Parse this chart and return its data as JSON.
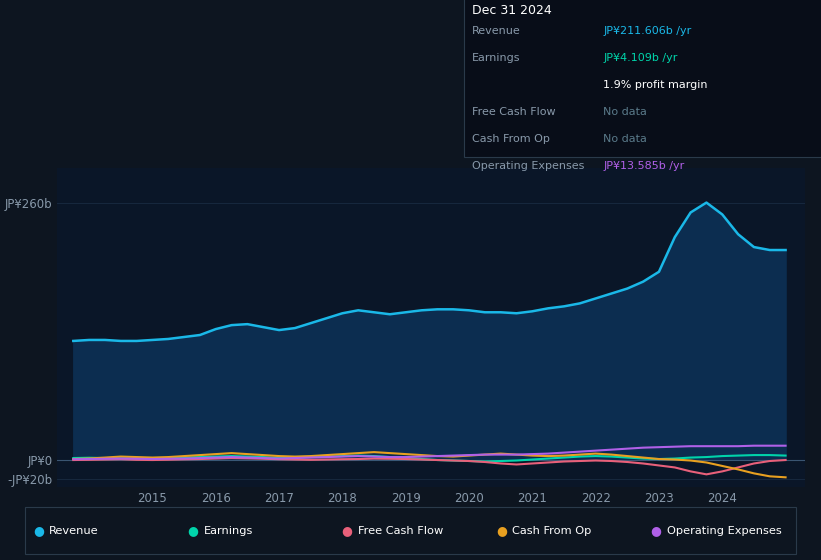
{
  "bg_color": "#0d1520",
  "plot_bg_color": "#0a1628",
  "grid_color": "#1a2d45",
  "years": [
    2013.75,
    2014.0,
    2014.25,
    2014.5,
    2014.75,
    2015.0,
    2015.25,
    2015.5,
    2015.75,
    2016.0,
    2016.25,
    2016.5,
    2016.75,
    2017.0,
    2017.25,
    2017.5,
    2017.75,
    2018.0,
    2018.25,
    2018.5,
    2018.75,
    2019.0,
    2019.25,
    2019.5,
    2019.75,
    2020.0,
    2020.25,
    2020.5,
    2020.75,
    2021.0,
    2021.25,
    2021.5,
    2021.75,
    2022.0,
    2022.25,
    2022.5,
    2022.75,
    2023.0,
    2023.25,
    2023.5,
    2023.75,
    2024.0,
    2024.25,
    2024.5,
    2024.75,
    2025.0
  ],
  "revenue": [
    120,
    121,
    121,
    120,
    120,
    121,
    122,
    124,
    126,
    132,
    136,
    137,
    134,
    131,
    133,
    138,
    143,
    148,
    151,
    149,
    147,
    149,
    151,
    152,
    152,
    151,
    149,
    149,
    148,
    150,
    153,
    155,
    158,
    163,
    168,
    173,
    180,
    190,
    225,
    250,
    260,
    248,
    228,
    215,
    212,
    212
  ],
  "earnings": [
    1.5,
    1.8,
    1.5,
    1.2,
    0.8,
    1.0,
    1.5,
    2.0,
    2.5,
    3.0,
    3.5,
    3.0,
    2.5,
    1.5,
    2.0,
    2.5,
    3.0,
    3.5,
    4.0,
    3.5,
    2.5,
    1.5,
    0.5,
    -0.5,
    -1.0,
    -1.5,
    -2.0,
    -1.5,
    -1.0,
    0.0,
    1.0,
    2.0,
    3.0,
    3.5,
    3.0,
    2.0,
    1.0,
    0.5,
    1.0,
    2.0,
    2.5,
    3.5,
    4.0,
    4.5,
    4.5,
    4.0
  ],
  "free_cash_flow": [
    -0.5,
    -0.3,
    0.0,
    0.3,
    -0.3,
    -0.5,
    -0.2,
    0.2,
    0.5,
    1.0,
    1.5,
    1.2,
    0.8,
    0.3,
    0.0,
    -0.3,
    0.0,
    0.3,
    0.5,
    1.0,
    0.8,
    0.5,
    0.0,
    -0.5,
    -1.0,
    -1.5,
    -2.5,
    -4.0,
    -5.0,
    -4.0,
    -3.0,
    -2.0,
    -1.5,
    -1.0,
    -1.5,
    -2.5,
    -4.0,
    -6.0,
    -8.0,
    -12.0,
    -15.0,
    -12.0,
    -8.0,
    -4.0,
    -1.5,
    -0.5
  ],
  "cash_from_op": [
    0.5,
    1.0,
    2.0,
    3.0,
    2.5,
    2.0,
    2.5,
    3.5,
    4.5,
    5.5,
    6.5,
    5.5,
    4.5,
    3.5,
    3.0,
    3.5,
    4.5,
    5.5,
    6.5,
    7.5,
    6.5,
    5.5,
    4.5,
    3.5,
    3.0,
    4.0,
    5.0,
    6.0,
    5.0,
    4.0,
    3.5,
    4.0,
    5.0,
    6.0,
    5.0,
    3.5,
    2.0,
    0.5,
    0.0,
    -1.0,
    -3.0,
    -6.5,
    -10.0,
    -14.0,
    -17.0,
    -18.0
  ],
  "operating_expenses": [
    0.3,
    0.5,
    0.8,
    1.0,
    0.8,
    0.5,
    0.8,
    1.0,
    1.5,
    2.0,
    2.5,
    2.0,
    1.5,
    1.0,
    1.5,
    2.0,
    2.5,
    3.0,
    3.5,
    3.0,
    2.5,
    2.5,
    3.0,
    3.5,
    4.0,
    4.5,
    5.0,
    5.0,
    5.0,
    5.5,
    6.0,
    7.0,
    8.0,
    9.0,
    10.0,
    11.0,
    12.0,
    12.5,
    13.0,
    13.5,
    13.5,
    13.5,
    13.5,
    14.0,
    14.0,
    14.0
  ],
  "ylim": [
    -28,
    295
  ],
  "yticks": [
    -20,
    0,
    260
  ],
  "ytick_labels": [
    "-JP¥20b",
    "JP¥0",
    "JP¥260b"
  ],
  "xlim": [
    2013.5,
    2025.3
  ],
  "xticks": [
    2015,
    2016,
    2017,
    2018,
    2019,
    2020,
    2021,
    2022,
    2023,
    2024
  ],
  "revenue_color": "#1ab8e8",
  "revenue_fill_color": "#0c2d50",
  "earnings_color": "#00d4aa",
  "free_cash_flow_color": "#e8607a",
  "cash_from_op_color": "#e8a020",
  "operating_expenses_color": "#b060e8",
  "zero_line_color": "#4a6a8a",
  "info_box": {
    "title": "Dec 31 2024",
    "revenue_label": "Revenue",
    "revenue_value": "JP¥211.606b /yr",
    "earnings_label": "Earnings",
    "earnings_value": "JP¥4.109b /yr",
    "profit_margin": "1.9% profit margin",
    "fcf_label": "Free Cash Flow",
    "fcf_value": "No data",
    "cashop_label": "Cash From Op",
    "cashop_value": "No data",
    "opex_label": "Operating Expenses",
    "opex_value": "JP¥13.585b /yr"
  },
  "legend_items": [
    {
      "label": "Revenue",
      "color": "#1ab8e8"
    },
    {
      "label": "Earnings",
      "color": "#00d4aa"
    },
    {
      "label": "Free Cash Flow",
      "color": "#e8607a"
    },
    {
      "label": "Cash From Op",
      "color": "#e8a020"
    },
    {
      "label": "Operating Expenses",
      "color": "#b060e8"
    }
  ]
}
